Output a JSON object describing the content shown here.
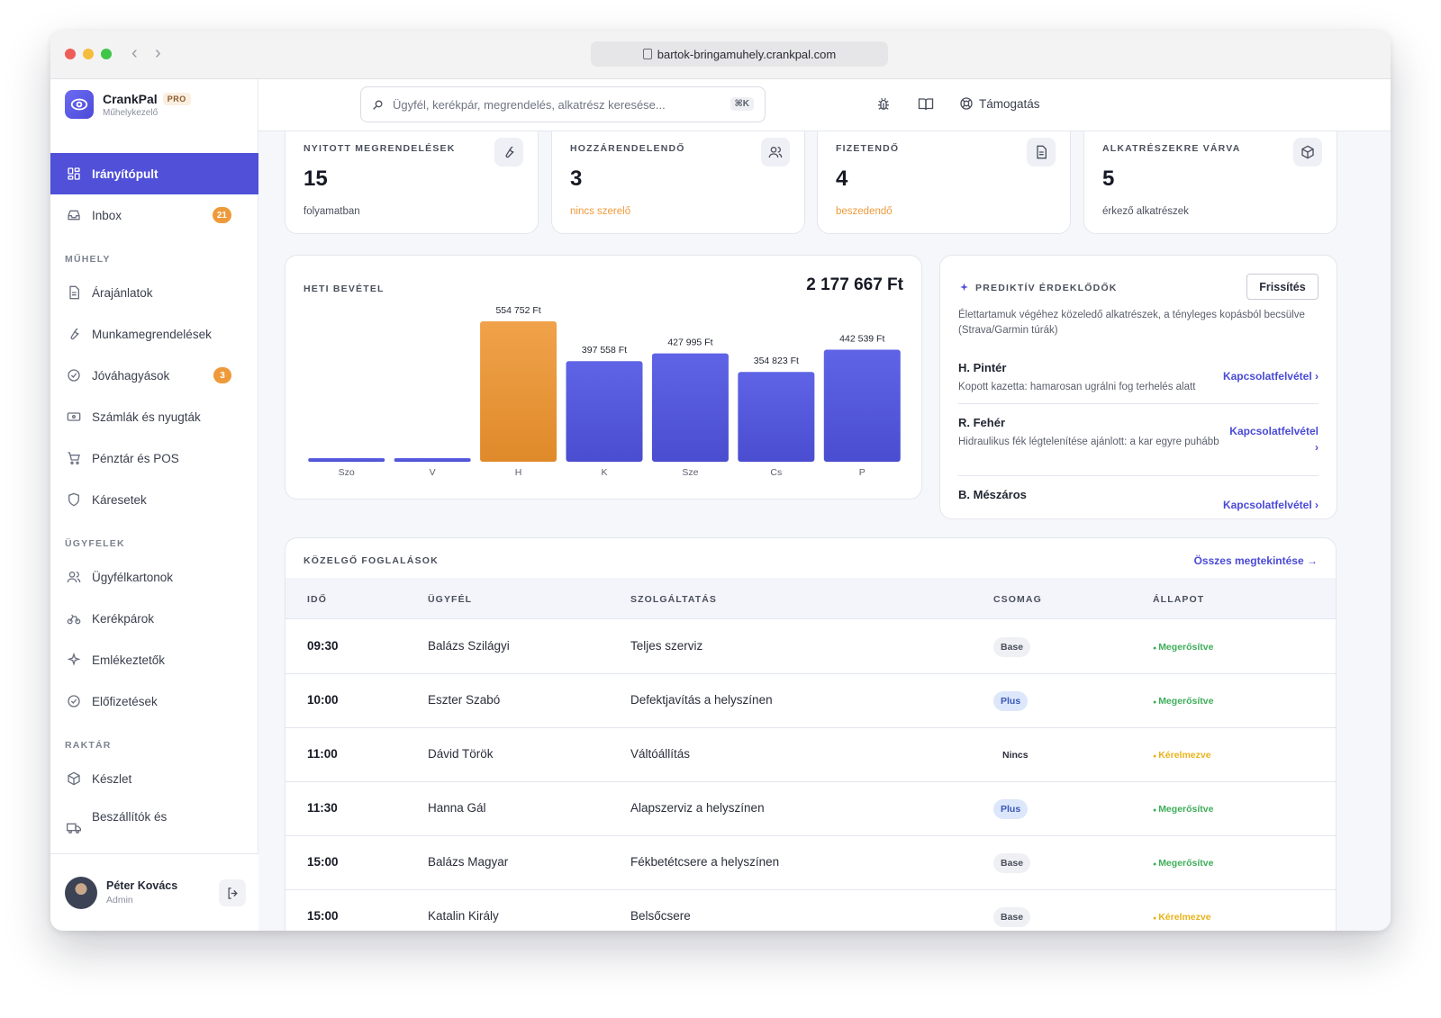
{
  "browser": {
    "url": "bartok-bringamuhely.crankpal.com"
  },
  "brand": {
    "name": "CrankPal",
    "tier": "PRO",
    "subtitle": "Műhelykezelő"
  },
  "search": {
    "placeholder": "Ügyfél, kerékpár, megrendelés, alkatrész keresése...",
    "shortcut": "⌘K"
  },
  "header": {
    "support": "Támogatás"
  },
  "sidebar": {
    "items": [
      {
        "label": "Irányítópult",
        "icon": "dashboard-icon"
      },
      {
        "label": "Inbox",
        "icon": "inbox-icon",
        "badge": "21"
      }
    ],
    "sections": [
      {
        "title": "MŰHELY",
        "items": [
          {
            "label": "Árajánlatok",
            "icon": "document-icon"
          },
          {
            "label": "Munkamegrendelések",
            "icon": "wrench-icon"
          },
          {
            "label": "Jóváhagyások",
            "icon": "check-circle-icon",
            "badge": "3"
          },
          {
            "label": "Számlák és nyugták",
            "icon": "banknote-icon"
          },
          {
            "label": "Pénztár és POS",
            "icon": "cart-icon"
          },
          {
            "label": "Káresetek",
            "icon": "shield-icon"
          }
        ]
      },
      {
        "title": "ÜGYFELEK",
        "items": [
          {
            "label": "Ügyfélkartonok",
            "icon": "users-icon"
          },
          {
            "label": "Kerékpárok",
            "icon": "bike-icon"
          },
          {
            "label": "Emlékeztetők",
            "icon": "sparkle-icon"
          },
          {
            "label": "Előfizetések",
            "icon": "check-circle-icon"
          }
        ]
      },
      {
        "title": "RAKTÁR",
        "items": [
          {
            "label": "Készlet",
            "icon": "box-icon"
          },
          {
            "label": "Beszállítók és",
            "icon": "truck-icon"
          }
        ]
      }
    ],
    "user": {
      "name": "Péter Kovács",
      "role": "Admin"
    }
  },
  "stats": [
    {
      "label": "NYITOTT MEGRENDELÉSEK",
      "value": "15",
      "sub": "folyamatban",
      "icon": "wrench-icon"
    },
    {
      "label": "HOZZÁRENDELENDŐ",
      "value": "3",
      "sub": "nincs szerelő",
      "icon": "users-icon"
    },
    {
      "label": "FIZETENDŐ",
      "value": "4",
      "sub": "beszedendő",
      "icon": "invoice-icon"
    },
    {
      "label": "ALKATRÉSZEKRE VÁRVA",
      "value": "5",
      "sub": "érkező alkatrészek",
      "icon": "box-icon"
    }
  ],
  "chart_data": {
    "type": "bar",
    "title": "HETI BEVÉTEL",
    "total": "2 177 667 Ft",
    "categories": [
      "Szo",
      "V",
      "H",
      "K",
      "Sze",
      "Cs",
      "P"
    ],
    "values": [
      0,
      0,
      554752,
      397558,
      427995,
      354823,
      442539
    ],
    "value_labels": [
      "",
      "",
      "554 752 Ft",
      "397 558 Ft",
      "427 995 Ft",
      "354 823 Ft",
      "442 539 Ft"
    ],
    "highlight_index": 2,
    "colors": {
      "bar": "#5a5ee0",
      "highlight": "#ea9a3e"
    }
  },
  "predictive": {
    "title": "PREDIKTÍV ÉRDEKLŐDŐK",
    "refresh": "Frissítés",
    "description": "Élettartamuk végéhez közeledő alkatrészek, a tényleges kopásból becsülve (Strava/Garmin túrák)",
    "leads": [
      {
        "name": "H. Pintér",
        "desc": "Kopott kazetta: hamarosan ugrálni fog terhelés alatt",
        "action": "Kapcsolatfelvétel ›"
      },
      {
        "name": "R. Fehér",
        "desc": "Hidraulikus fék légtelenítése ajánlott: a kar egyre puhább",
        "action": "Kapcsolatfelvétel ›"
      },
      {
        "name": "B. Mészáros",
        "desc": "",
        "action": "Kapcsolatfelvétel ›"
      }
    ]
  },
  "bookings": {
    "title": "KÖZELGŐ FOGLALÁSOK",
    "see_all": "Összes megtekintése →",
    "columns": [
      "IDŐ",
      "ÜGYFÉL",
      "SZOLGÁLTATÁS",
      "CSOMAG",
      "ÁLLAPOT"
    ],
    "rows": [
      {
        "time": "09:30",
        "client": "Balázs Szilágyi",
        "service": "Teljes szerviz",
        "package": "Base",
        "status": "Megerősítve"
      },
      {
        "time": "10:00",
        "client": "Eszter Szabó",
        "service": "Defektjavítás a helyszínen",
        "package": "Plus",
        "status": "Megerősítve"
      },
      {
        "time": "11:00",
        "client": "Dávid Török",
        "service": "Váltóállítás",
        "package": "Nincs",
        "status": "Kérelmezve"
      },
      {
        "time": "11:30",
        "client": "Hanna Gál",
        "service": "Alapszerviz a helyszínen",
        "package": "Plus",
        "status": "Megerősítve"
      },
      {
        "time": "15:00",
        "client": "Balázs Magyar",
        "service": "Fékbetétcsere a helyszínen",
        "package": "Base",
        "status": "Megerősítve"
      },
      {
        "time": "15:00",
        "client": "Katalin Király",
        "service": "Belsőcsere",
        "package": "Base",
        "status": "Kérelmezve"
      }
    ],
    "status_colors": {
      "Megerősítve": "#3fae5a",
      "Kérelmezve": "#e8b21a"
    }
  }
}
